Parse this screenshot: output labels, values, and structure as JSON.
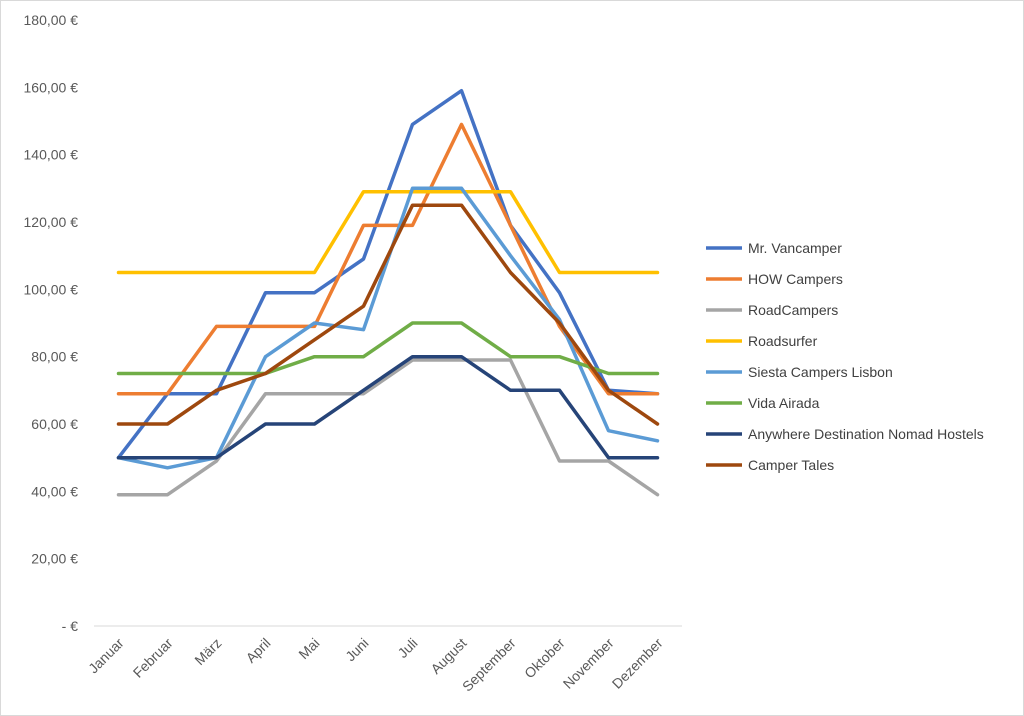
{
  "chart_data": {
    "type": "line",
    "title": "",
    "xlabel": "",
    "ylabel": "",
    "ylim": [
      0,
      180
    ],
    "grid": false,
    "legend_position": "right",
    "categories": [
      "Januar",
      "Februar",
      "März",
      "April",
      "Mai",
      "Juni",
      "Juli",
      "August",
      "September",
      "Oktober",
      "November",
      "Dezember"
    ],
    "y_tick_values": [
      0,
      20,
      40,
      60,
      80,
      100,
      120,
      140,
      160,
      180
    ],
    "y_tick_labels": [
      "-  €",
      "20,00 €",
      "40,00 €",
      "60,00 €",
      "80,00 €",
      "100,00 €",
      "120,00 €",
      "140,00 €",
      "160,00 €",
      "180,00 €"
    ],
    "series": [
      {
        "name": "Mr. Vancamper",
        "color": "#4472C4",
        "values": [
          50,
          69,
          69,
          99,
          99,
          109,
          149,
          159,
          119,
          99,
          70,
          69
        ]
      },
      {
        "name": "HOW Campers",
        "color": "#ED7D31",
        "values": [
          69,
          69,
          89,
          89,
          89,
          119,
          119,
          149,
          119,
          89,
          69,
          69
        ]
      },
      {
        "name": "RoadCampers",
        "color": "#A5A5A5",
        "values": [
          39,
          39,
          49,
          69,
          69,
          69,
          79,
          79,
          79,
          49,
          49,
          39
        ]
      },
      {
        "name": "Roadsurfer",
        "color": "#FFC000",
        "values": [
          105,
          105,
          105,
          105,
          105,
          129,
          129,
          129,
          129,
          105,
          105,
          105
        ]
      },
      {
        "name": "Siesta Campers Lisbon",
        "color": "#5B9BD5",
        "values": [
          50,
          47,
          50,
          80,
          90,
          88,
          130,
          130,
          110,
          91,
          58,
          55
        ]
      },
      {
        "name": "Vida Airada",
        "color": "#70AD47",
        "values": [
          75,
          75,
          75,
          75,
          80,
          80,
          90,
          90,
          80,
          80,
          75,
          75
        ]
      },
      {
        "name": "Anywhere Destination Nomad Hostels",
        "color": "#264478",
        "values": [
          50,
          50,
          50,
          60,
          60,
          70,
          80,
          80,
          70,
          70,
          50,
          50
        ]
      },
      {
        "name": "Camper Tales",
        "color": "#9E480E",
        "values": [
          60,
          60,
          70,
          75,
          85,
          95,
          125,
          125,
          105,
          90,
          70,
          60
        ]
      }
    ]
  }
}
